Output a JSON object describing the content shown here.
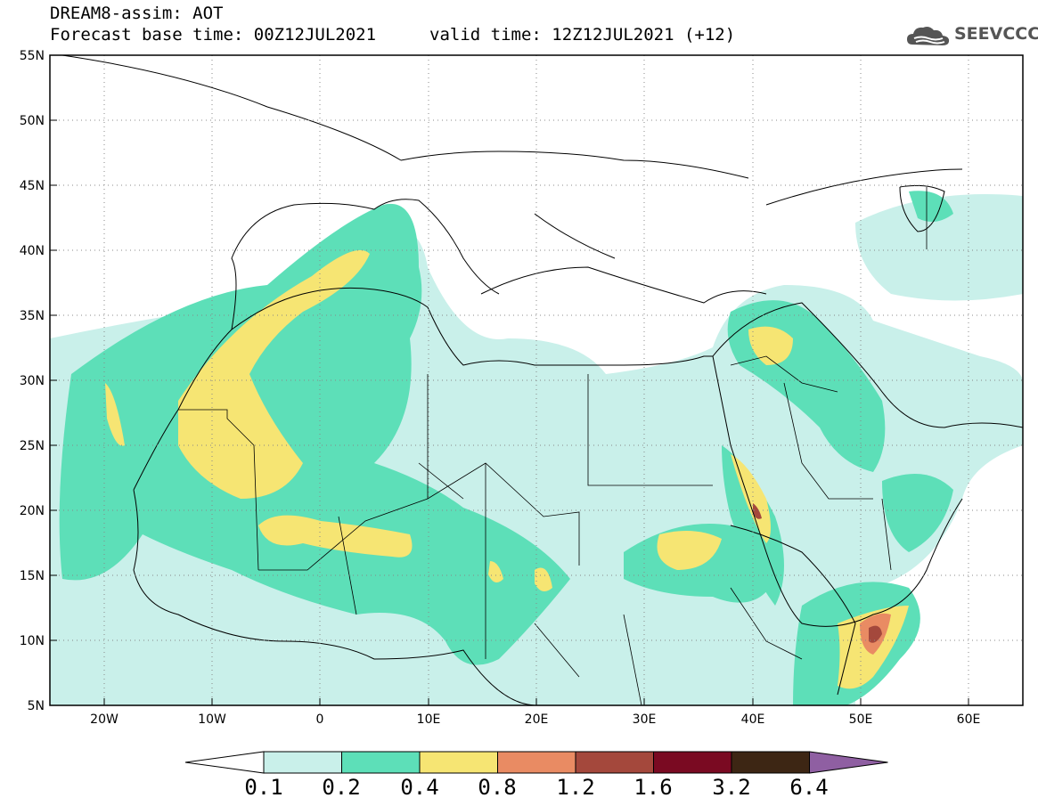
{
  "header": {
    "title": "DREAM8-assim: AOT",
    "base_time": "Forecast base time: 00Z12JUL2021",
    "valid_time": "valid time: 12Z12JUL2021 (+12)"
  },
  "logo": {
    "text": "SEEVCCC",
    "icon": "cloud-icon"
  },
  "map": {
    "lat_labels": [
      "55N",
      "50N",
      "45N",
      "40N",
      "35N",
      "30N",
      "25N",
      "20N",
      "15N",
      "10N",
      "5N"
    ],
    "lon_labels": [
      "20W",
      "10W",
      "0",
      "10E",
      "20E",
      "30E",
      "40E",
      "50E",
      "60E"
    ],
    "lat_range": [
      5,
      55
    ],
    "lon_range": [
      -25,
      65
    ]
  },
  "colorbar": {
    "labels": [
      "0.1",
      "0.2",
      "0.4",
      "0.8",
      "1.2",
      "1.6",
      "3.2",
      "6.4"
    ],
    "colors": [
      "#ffffff",
      "#c9f0ea",
      "#5ddfb8",
      "#f6e573",
      "#e98b63",
      "#a4483c",
      "#7a0a22",
      "#3d2614",
      "#8f5fa2"
    ]
  }
}
